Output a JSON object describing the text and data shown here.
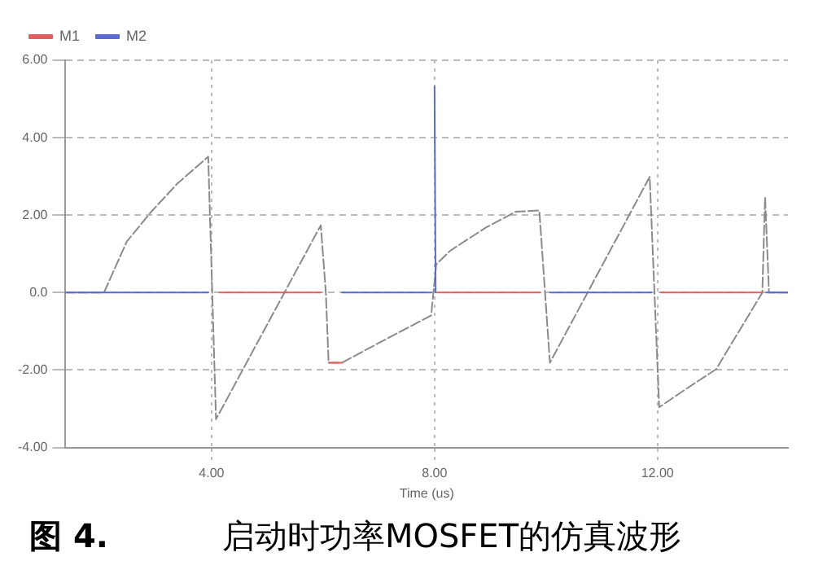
{
  "chart_data": {
    "type": "line",
    "title": "启动时功率MOSFET的仿真波形",
    "annotations": [
      "图 4."
    ],
    "xlabel": "Time (us)",
    "xlim": [
      1.38,
      14.34
    ],
    "ylim": [
      -4,
      6
    ],
    "xticks": [
      {
        "value": 4,
        "label": "4.00"
      },
      {
        "value": 8,
        "label": "8.00"
      },
      {
        "value": 12,
        "label": "12.00"
      }
    ],
    "yticks": [
      {
        "value": -4,
        "label": "-4.00"
      },
      {
        "value": -2,
        "label": "-2.00"
      },
      {
        "value": 0,
        "label": "0.0"
      },
      {
        "value": 2,
        "label": "2.00"
      },
      {
        "value": 4,
        "label": "4.00"
      },
      {
        "value": 6,
        "label": "6.00"
      }
    ],
    "grid": true,
    "legend": "top left",
    "marker": "none",
    "series": [
      {
        "name": "M1",
        "color": "#e06060",
        "line_style": "solid",
        "x": [
          4.14,
          5.96,
          5.97,
          6.1,
          6.34,
          6.35,
          8.05,
          9.9,
          9.91,
          12.06,
          13.88
        ],
        "values": [
          0,
          0,
          null,
          -1.81,
          -1.81,
          null,
          0,
          0,
          null,
          0,
          0
        ]
      },
      {
        "name": "M2",
        "color": "#5b6bd0",
        "line_style": "solid",
        "x": [
          1.38,
          3.94,
          3.95,
          6.34,
          7.94,
          7.95,
          8.0,
          8.02,
          8.03,
          10.07,
          11.89,
          11.9,
          13.95,
          14.34
        ],
        "values": [
          0,
          0,
          null,
          0,
          0,
          null,
          5.32,
          0,
          null,
          0,
          0,
          null,
          0,
          0
        ]
      },
      {
        "color": "#8a8a8a",
        "line_style": "dashed",
        "x": [
          1.38,
          2.07,
          2.48,
          2.92,
          3.39,
          3.94,
          4.08,
          5.96,
          6.05,
          6.1,
          6.34,
          7.0,
          7.94,
          8.03,
          8.28,
          8.91,
          9.46,
          9.88,
          10.07,
          11.86,
          12.03,
          12.5,
          13.05,
          13.88,
          13.93,
          14.0,
          14.34
        ],
        "values": [
          0,
          0,
          1.32,
          2.09,
          2.82,
          3.51,
          -3.27,
          1.74,
          0,
          -1.81,
          -1.81,
          -1.3,
          -0.59,
          0.73,
          1.08,
          1.67,
          2.09,
          2.12,
          -1.81,
          2.99,
          -2.96,
          -2.5,
          -1.98,
          0,
          2.47,
          0,
          0
        ]
      }
    ]
  }
}
